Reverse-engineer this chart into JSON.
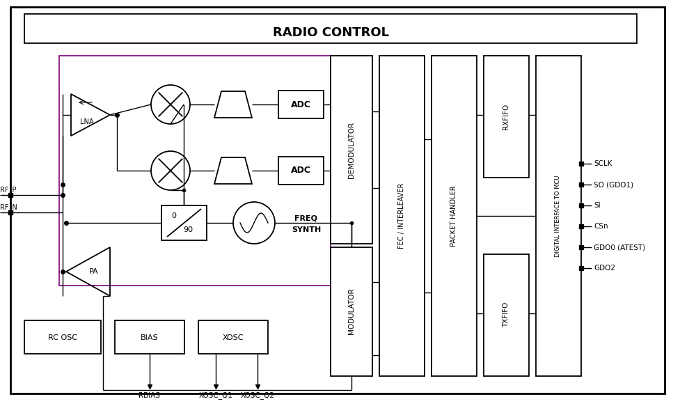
{
  "title": "RADIO CONTROL",
  "bg_color": "#ffffff",
  "border_color": "#000000",
  "purple": "#800080",
  "signal_labels_right": [
    "SCLK",
    "SO (GDO1)",
    "SI",
    "CSn",
    "GDO0 (ATEST)",
    "GDO2"
  ],
  "bottom_labels": [
    "RBIAS",
    "XOSC_Q1",
    "XOSC_Q2"
  ],
  "figsize": [
    10.0,
    5.93
  ],
  "dpi": 100
}
